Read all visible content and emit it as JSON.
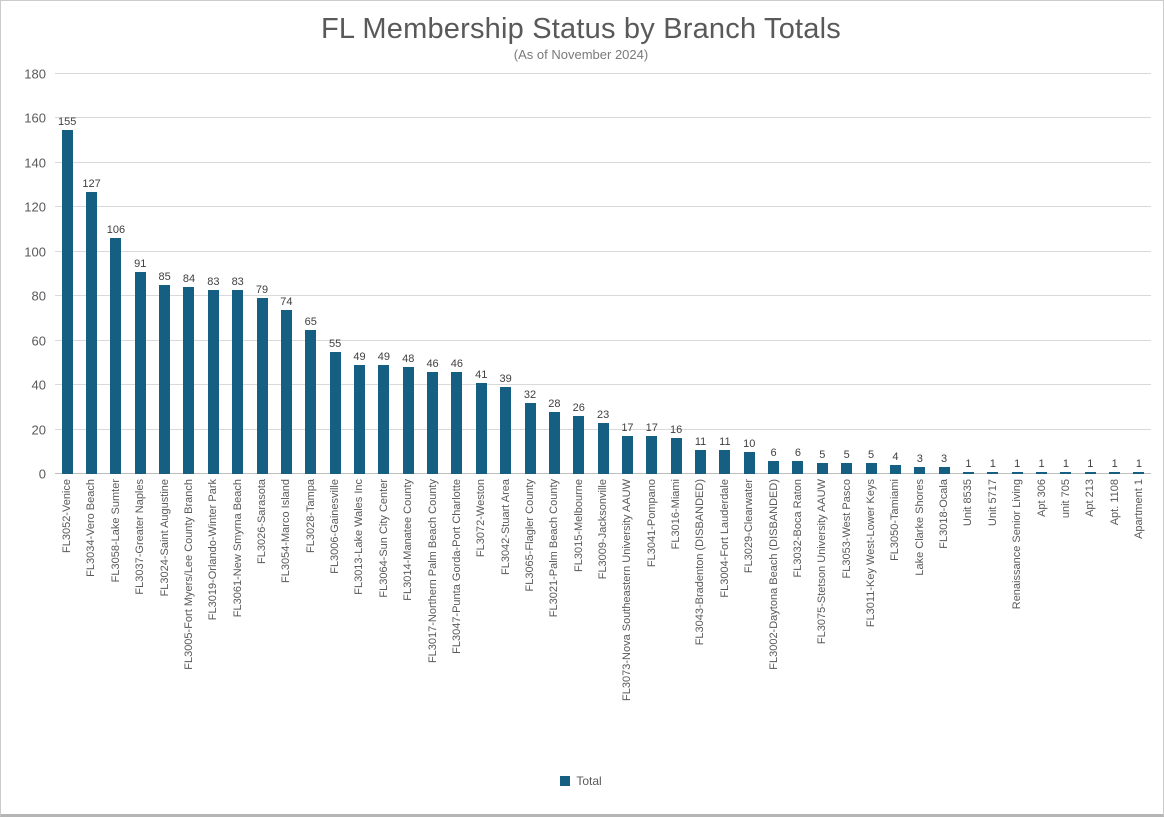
{
  "chart": {
    "title": "FL Membership Status by Branch Totals",
    "subtitle": "(As of November 2024)"
  },
  "legend": {
    "label": "Total",
    "swatch_color": "#156082"
  },
  "chart_data": {
    "type": "bar",
    "title": "FL Membership Status by Branch Totals",
    "subtitle": "(As of November 2024)",
    "series_name": "Total",
    "categories": [
      "FL3052-Venice",
      "FL3034-Vero Beach",
      "FL3058-Lake Sumter",
      "FL3037-Greater Naples",
      "FL3024-Saint Augustine",
      "FL3005-Fort Myers/Lee County Branch",
      "FL3019-Orlando-Winter Park",
      "FL3061-New Smyrna Beach",
      "FL3026-Sarasota",
      "FL3054-Marco Island",
      "FL3028-Tampa",
      "FL3006-Gainesville",
      "FL3013-Lake Wales Inc",
      "FL3064-Sun City Center",
      "FL3014-Manatee County",
      "FL3017-Northern Palm Beach County",
      "FL3047-Punta Gorda-Port Charlotte",
      "FL3072-Weston",
      "FL3042-Stuart Area",
      "FL3065-Flagler County",
      "FL3021-Palm Beach County",
      "FL3015-Melbourne",
      "FL3009-Jacksonville",
      "FL3073-Nova Southeastern University AAUW",
      "FL3041-Pompano",
      "FL3016-Miami",
      "FL3043-Bradenton (DISBANDED)",
      "FL3004-Fort Lauderdale",
      "FL3029-Clearwater",
      "FL3002-Daytona Beach (DISBANDED)",
      "FL3032-Boca Raton",
      "FL3075-Stetson University AAUW",
      "FL3053-West Pasco",
      "FL3011-Key West-Lower Keys",
      "FL3050-Tamiami",
      "Lake Clarke Shores",
      "FL3018-Ocala",
      "Unit 8535",
      "Unit 5717",
      "Renaissance Senior Living",
      "Apt 306",
      "unit 705",
      "Apt 213",
      "Apt. 1108",
      "Apartment 1"
    ],
    "values": [
      155,
      127,
      106,
      91,
      85,
      84,
      83,
      83,
      79,
      74,
      65,
      55,
      49,
      49,
      48,
      46,
      46,
      41,
      39,
      32,
      28,
      26,
      23,
      17,
      17,
      16,
      11,
      11,
      10,
      6,
      6,
      5,
      5,
      5,
      4,
      3,
      3,
      1,
      1,
      1,
      1,
      1,
      1,
      1,
      1
    ],
    "ylim": [
      0,
      180
    ],
    "ytick_interval": 20,
    "yticks": [
      0,
      20,
      40,
      60,
      80,
      100,
      120,
      140,
      160,
      180
    ],
    "bar_color": "#156082",
    "gridline_color": "#d9d9d9",
    "axis_line_color": "#bfbfbf",
    "text_color": "#595959",
    "grid": true,
    "data_labels": true,
    "legend_position": "bottom"
  }
}
